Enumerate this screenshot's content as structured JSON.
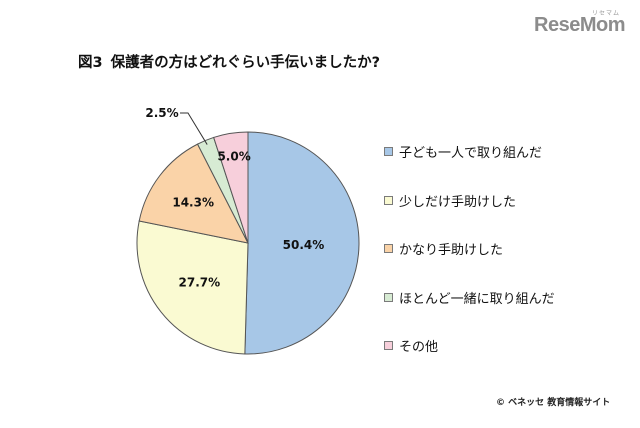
{
  "brand": {
    "logo_text": "ReseMom",
    "logo_subtext": "リセマム"
  },
  "figure": {
    "number": "図3",
    "title": "保護者の方はどれぐらい手伝いましたか?"
  },
  "chart_data": {
    "type": "pie",
    "start_angle": "12 o'clock",
    "direction": "clockwise",
    "slices": [
      {
        "label": "子ども一人で取り組んだ",
        "value": 50.4,
        "value_text": "50.4%",
        "color": "#a7c7e7"
      },
      {
        "label": "少しだけ手助けした",
        "value": 27.7,
        "value_text": "27.7%",
        "color": "#fafad2"
      },
      {
        "label": "かなり手助けした",
        "value": 14.3,
        "value_text": "14.3%",
        "color": "#fad3a8"
      },
      {
        "label": "ほとんど一緒に取り組んだ",
        "value": 2.5,
        "value_text": "2.5%",
        "color": "#d7ebd3"
      },
      {
        "label": "その他",
        "value": 5.0,
        "value_text": "5.0%",
        "color": "#f7cfdb"
      }
    ],
    "legend_position": "right",
    "edge_color": "#555555"
  },
  "credit": {
    "text": "© ベネッセ 教育情報サイト"
  }
}
